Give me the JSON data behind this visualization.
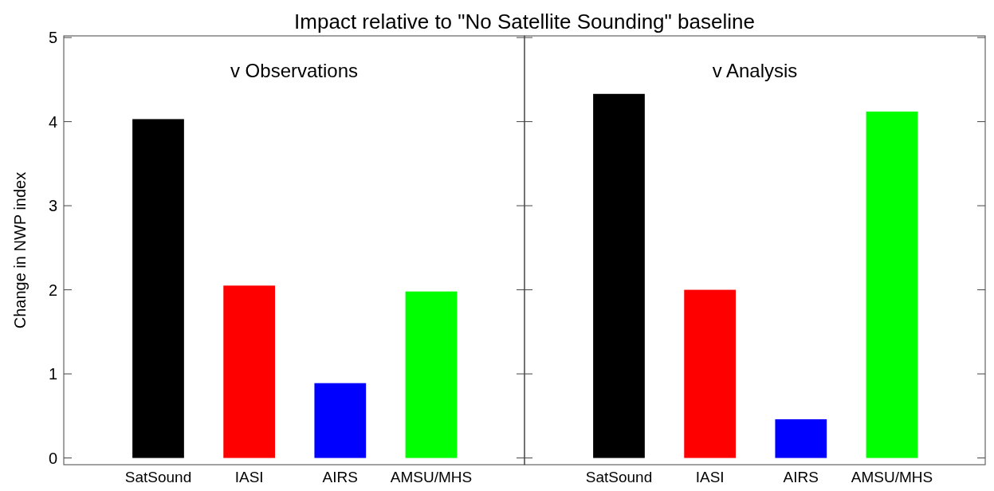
{
  "chart_data": [
    {
      "type": "bar",
      "title": "Impact relative to \"No Satellite Sounding\" baseline",
      "subtitle": "v Observations",
      "ylabel": "Change in NWP index",
      "categories": [
        "SatSound",
        "IASI",
        "AIRS",
        "AMSU/MHS"
      ],
      "values": [
        4.03,
        2.05,
        0.89,
        1.98
      ],
      "colors": [
        "#000000",
        "#ff0000",
        "#0000ff",
        "#00ff00"
      ],
      "ylim": [
        -0.08,
        5.02
      ],
      "yticks": [
        0,
        1,
        2,
        3,
        4,
        5
      ]
    },
    {
      "type": "bar",
      "subtitle": "v Analysis",
      "categories": [
        "SatSound",
        "IASI",
        "AIRS",
        "AMSU/MHS"
      ],
      "values": [
        4.33,
        2.0,
        0.46,
        4.12
      ],
      "colors": [
        "#000000",
        "#ff0000",
        "#0000ff",
        "#00ff00"
      ],
      "ylim": [
        -0.08,
        5.02
      ],
      "yticks": [
        0,
        1,
        2,
        3,
        4,
        5
      ],
      "tick_labels": "x"
    }
  ]
}
